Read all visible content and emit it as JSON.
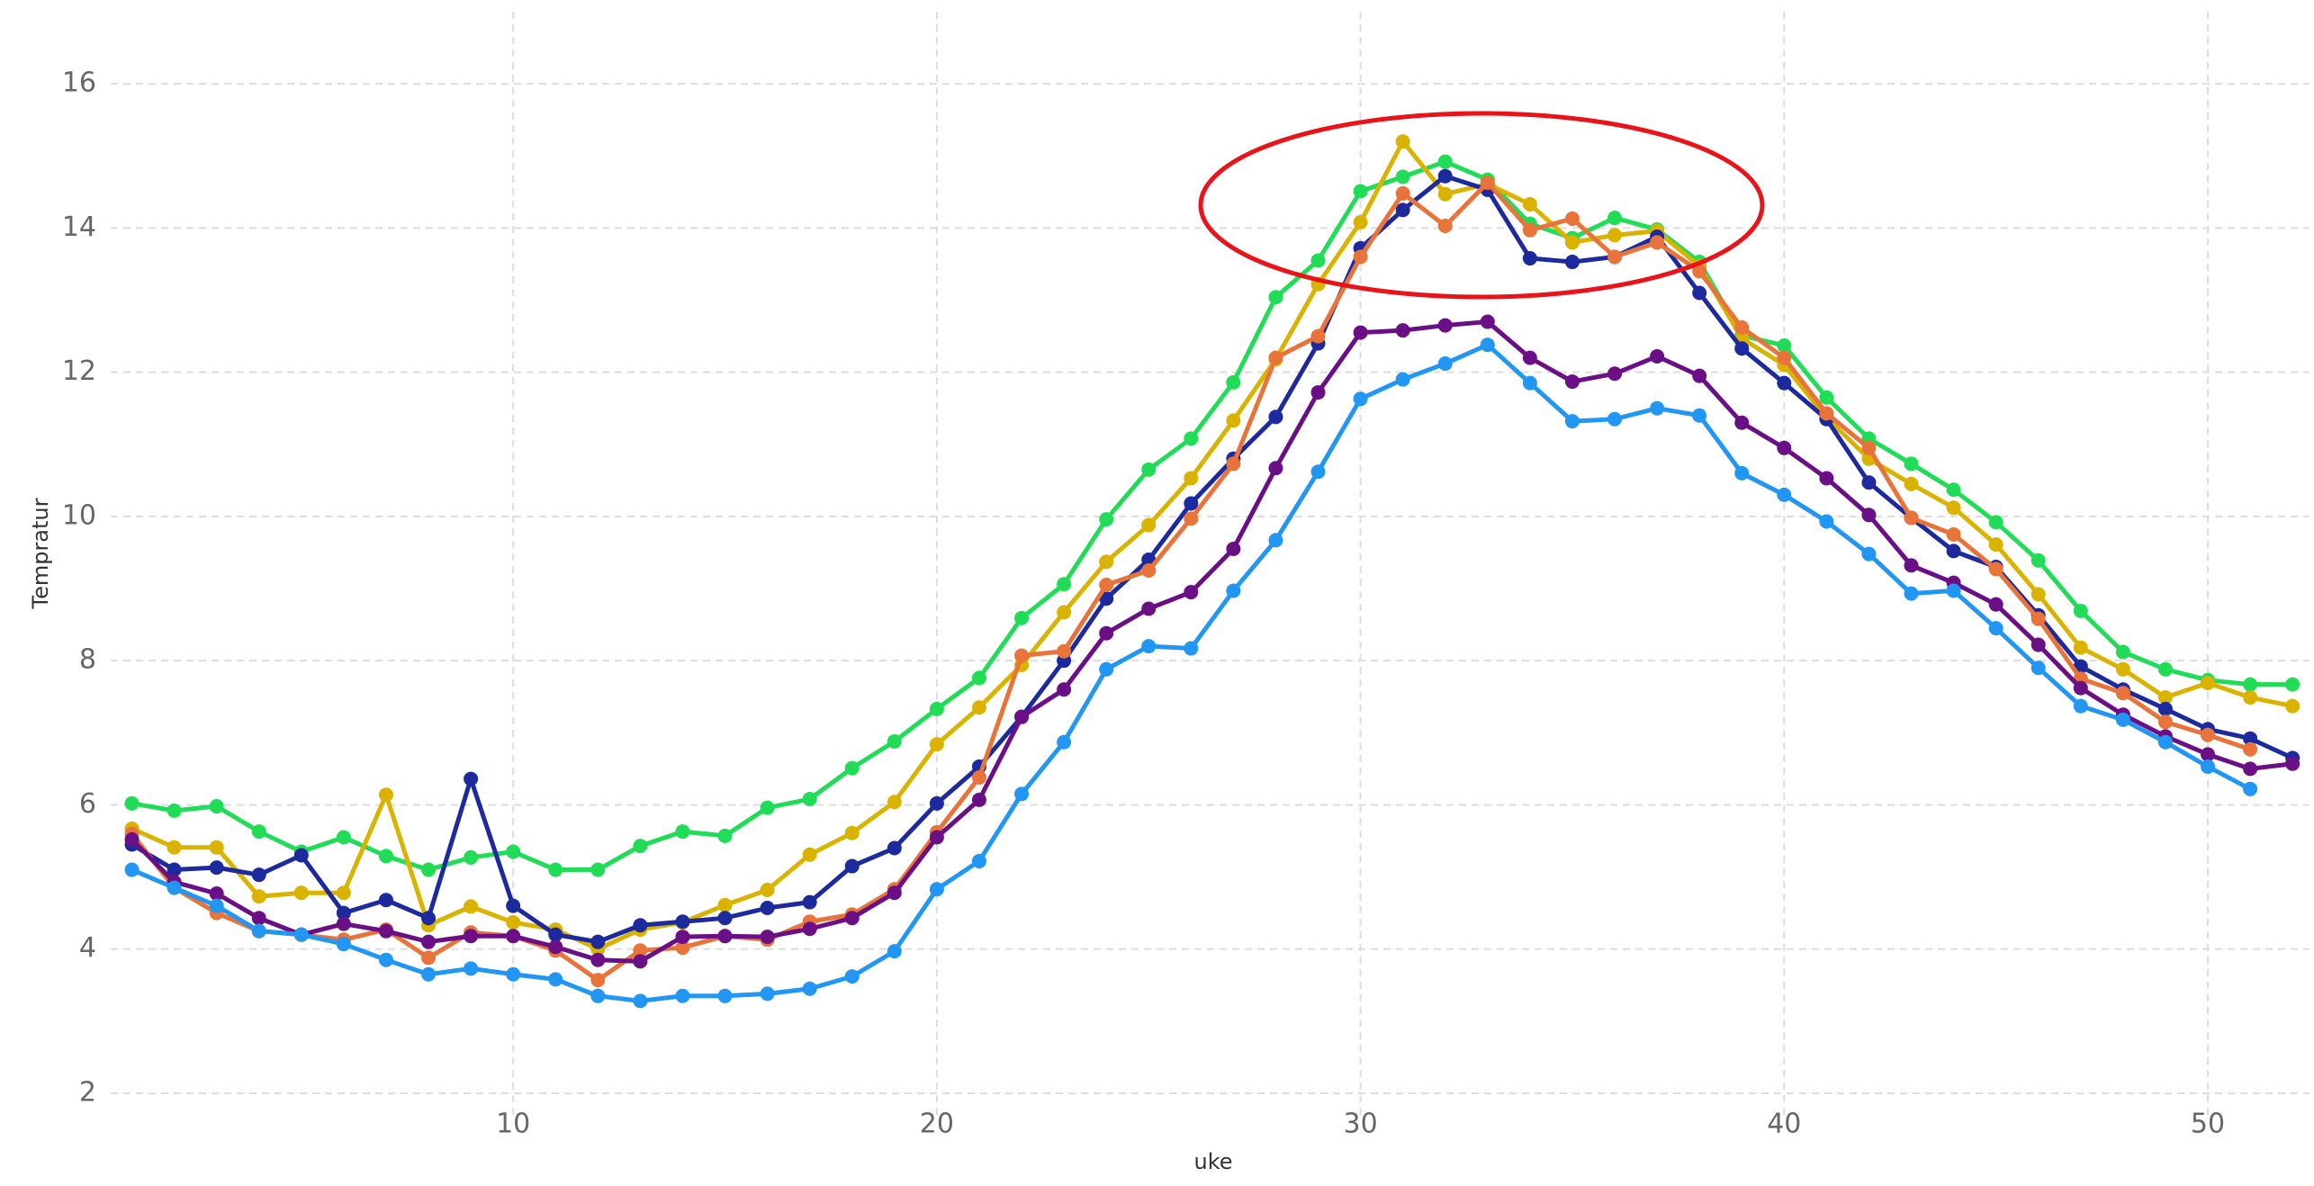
{
  "chart_data": {
    "type": "line",
    "x_label": "uke",
    "y_label": "Tempratur",
    "x": [
      1,
      2,
      3,
      4,
      5,
      6,
      7,
      8,
      9,
      10,
      11,
      12,
      13,
      14,
      15,
      16,
      17,
      18,
      19,
      20,
      21,
      22,
      23,
      24,
      25,
      26,
      27,
      28,
      29,
      30,
      31,
      32,
      33,
      34,
      35,
      36,
      37,
      38,
      39,
      40,
      41,
      42,
      43,
      44,
      45,
      46,
      47,
      48,
      49,
      50,
      51,
      52
    ],
    "xlim": [
      0.5,
      52.4
    ],
    "xticks": [
      10,
      20,
      30,
      40,
      50
    ],
    "ylim": [
      1.7,
      17
    ],
    "yticks": [
      2,
      4,
      6,
      8,
      10,
      12,
      14,
      16
    ],
    "grid": true,
    "series": [
      {
        "color": "#21dc57",
        "values": [
          6.02,
          5.92,
          5.98,
          5.63,
          5.35,
          5.55,
          5.29,
          5.1,
          5.27,
          5.35,
          5.1,
          5.1,
          5.43,
          5.63,
          5.57,
          5.96,
          6.08,
          6.51,
          6.88,
          7.33,
          7.76,
          8.59,
          9.06,
          9.96,
          10.65,
          11.08,
          11.86,
          13.04,
          13.55,
          14.51,
          14.71,
          14.92,
          14.67,
          14.06,
          13.86,
          14.14,
          13.98,
          13.53,
          12.51,
          12.37,
          11.65,
          11.08,
          10.73,
          10.37,
          9.92,
          9.39,
          8.69,
          8.12,
          7.88,
          7.73,
          7.67,
          7.67
        ]
      },
      {
        "color": "#d9b300",
        "values": [
          5.67,
          5.41,
          5.41,
          4.73,
          4.78,
          4.78,
          6.14,
          4.33,
          4.59,
          4.37,
          4.27,
          4.0,
          4.27,
          4.37,
          4.61,
          4.82,
          5.31,
          5.61,
          6.04,
          6.84,
          7.35,
          7.94,
          8.67,
          9.37,
          9.88,
          10.53,
          11.33,
          12.18,
          13.22,
          14.08,
          15.2,
          14.47,
          14.61,
          14.33,
          13.8,
          13.9,
          13.96,
          13.47,
          12.47,
          12.1,
          11.37,
          10.8,
          10.45,
          10.12,
          9.61,
          8.92,
          8.18,
          7.88,
          7.49,
          7.69,
          7.49,
          7.37
        ]
      },
      {
        "color": "#1d2a9e",
        "values": [
          5.45,
          5.1,
          5.13,
          5.03,
          5.3,
          4.5,
          4.68,
          4.43,
          6.36,
          4.6,
          4.2,
          4.1,
          4.33,
          4.38,
          4.43,
          4.57,
          4.65,
          5.15,
          5.4,
          6.02,
          6.53,
          7.22,
          8.0,
          8.86,
          9.4,
          10.18,
          10.8,
          11.38,
          12.4,
          13.72,
          14.25,
          14.72,
          14.53,
          13.58,
          13.53,
          13.6,
          13.88,
          13.1,
          12.33,
          11.85,
          11.35,
          10.47,
          9.98,
          9.52,
          9.3,
          8.63,
          7.92,
          7.6,
          7.33,
          7.05,
          6.92,
          6.65
        ]
      },
      {
        "color": "#e8743b",
        "values": [
          5.6,
          4.85,
          4.5,
          4.25,
          4.2,
          4.13,
          4.27,
          3.88,
          4.23,
          4.18,
          3.98,
          3.57,
          3.98,
          4.02,
          4.18,
          4.13,
          4.38,
          4.48,
          4.83,
          5.62,
          6.38,
          8.07,
          8.13,
          9.05,
          9.25,
          9.97,
          10.73,
          12.2,
          12.5,
          13.6,
          14.48,
          14.03,
          14.63,
          13.97,
          14.13,
          13.6,
          13.8,
          13.4,
          12.62,
          12.2,
          11.43,
          10.95,
          9.98,
          9.75,
          9.27,
          8.58,
          7.75,
          7.55,
          7.15,
          6.97,
          6.77,
          null
        ]
      },
      {
        "color": "#6a0f86",
        "values": [
          5.52,
          4.93,
          4.77,
          4.43,
          4.2,
          4.35,
          4.25,
          4.1,
          4.18,
          4.18,
          4.03,
          3.85,
          3.83,
          4.17,
          4.18,
          4.17,
          4.28,
          4.43,
          4.78,
          5.55,
          6.07,
          7.22,
          7.6,
          8.38,
          8.72,
          8.95,
          9.55,
          10.67,
          11.72,
          12.55,
          12.58,
          12.65,
          12.7,
          12.2,
          11.87,
          11.98,
          12.22,
          11.95,
          11.3,
          10.95,
          10.53,
          10.02,
          9.32,
          9.08,
          8.78,
          8.22,
          7.62,
          7.25,
          6.95,
          6.7,
          6.5,
          6.57
        ]
      },
      {
        "color": "#2196f3",
        "values": [
          5.1,
          4.85,
          4.6,
          4.25,
          4.2,
          4.07,
          3.85,
          3.65,
          3.73,
          3.65,
          3.58,
          3.35,
          3.28,
          3.35,
          3.35,
          3.38,
          3.45,
          3.62,
          3.97,
          4.83,
          5.22,
          6.15,
          6.87,
          7.88,
          8.2,
          8.17,
          8.97,
          9.67,
          10.62,
          11.63,
          11.9,
          12.12,
          12.38,
          11.85,
          11.32,
          11.35,
          11.5,
          11.4,
          10.6,
          10.3,
          9.93,
          9.48,
          8.93,
          8.97,
          8.45,
          7.9,
          7.37,
          7.18,
          6.87,
          6.53,
          6.22,
          null
        ]
      }
    ]
  }
}
